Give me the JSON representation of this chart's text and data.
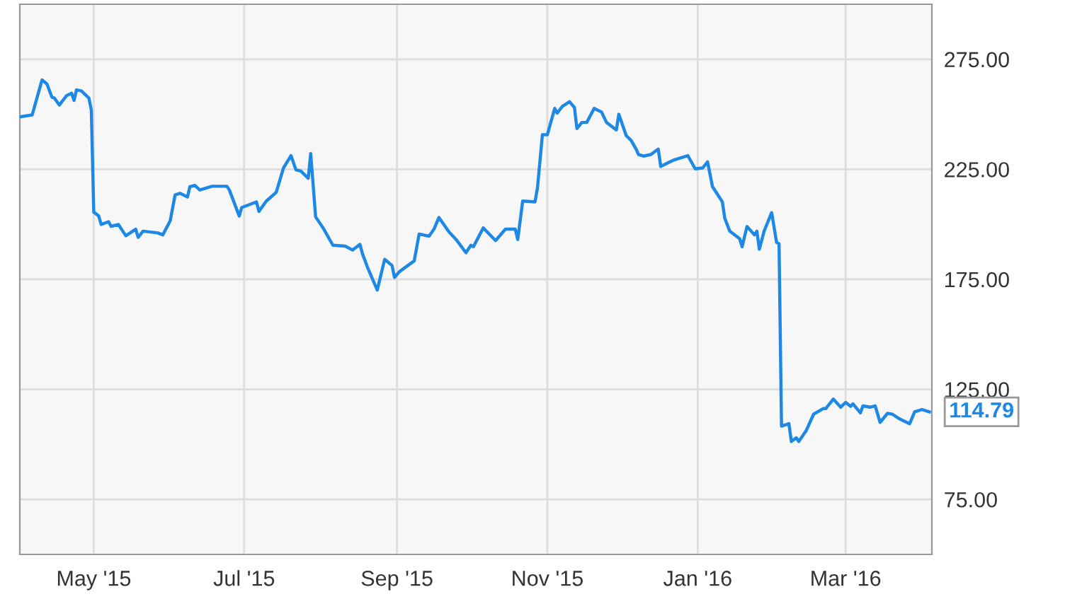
{
  "chart_data": {
    "type": "line",
    "x": [
      "2015-04-01",
      "2015-04-06",
      "2015-04-10",
      "2015-04-12",
      "2015-04-14",
      "2015-04-15",
      "2015-04-17",
      "2015-04-20",
      "2015-04-22",
      "2015-04-23",
      "2015-04-24",
      "2015-04-26",
      "2015-04-29",
      "2015-04-30",
      "2015-05-01",
      "2015-05-03",
      "2015-05-04",
      "2015-05-07",
      "2015-05-08",
      "2015-05-11",
      "2015-05-14",
      "2015-05-18",
      "2015-05-19",
      "2015-05-21",
      "2015-05-27",
      "2015-05-29",
      "2015-06-01",
      "2015-06-03",
      "2015-06-05",
      "2015-06-08",
      "2015-06-09",
      "2015-06-11",
      "2015-06-13",
      "2015-06-18",
      "2015-06-24",
      "2015-06-25",
      "2015-06-29",
      "2015-06-30",
      "2015-07-06",
      "2015-07-07",
      "2015-07-10",
      "2015-07-14",
      "2015-07-17",
      "2015-07-20",
      "2015-07-22",
      "2015-07-24",
      "2015-07-27",
      "2015-07-28",
      "2015-07-30",
      "2015-08-02",
      "2015-08-06",
      "2015-08-11",
      "2015-08-14",
      "2015-08-17",
      "2015-08-18",
      "2015-08-20",
      "2015-08-24",
      "2015-08-27",
      "2015-08-30",
      "2015-08-31",
      "2015-09-02",
      "2015-09-08",
      "2015-09-10",
      "2015-09-14",
      "2015-09-16",
      "2015-09-18",
      "2015-09-22",
      "2015-09-25",
      "2015-09-29",
      "2015-10-01",
      "2015-10-02",
      "2015-10-06",
      "2015-10-11",
      "2015-10-15",
      "2015-10-19",
      "2015-10-20",
      "2015-10-22",
      "2015-10-27",
      "2015-10-28",
      "2015-10-30",
      "2015-11-01",
      "2015-11-04",
      "2015-11-05",
      "2015-11-07",
      "2015-11-10",
      "2015-11-12",
      "2015-11-13",
      "2015-11-15",
      "2015-11-17",
      "2015-11-20",
      "2015-11-23",
      "2015-11-25",
      "2015-11-29",
      "2015-11-30",
      "2015-12-03",
      "2015-12-05",
      "2015-12-07",
      "2015-12-08",
      "2015-12-10",
      "2015-12-13",
      "2015-12-16",
      "2015-12-17",
      "2015-12-22",
      "2015-12-28",
      "2015-12-31",
      "2016-01-03",
      "2016-01-05",
      "2016-01-07",
      "2016-01-11",
      "2016-01-12",
      "2016-01-14",
      "2016-01-18",
      "2016-01-19",
      "2016-01-21",
      "2016-01-24",
      "2016-01-25",
      "2016-01-26",
      "2016-01-28",
      "2016-01-31",
      "2016-02-02",
      "2016-02-03",
      "2016-02-04",
      "2016-02-07",
      "2016-02-08",
      "2016-02-10",
      "2016-02-11",
      "2016-02-14",
      "2016-02-17",
      "2016-02-21",
      "2016-02-22",
      "2016-02-25",
      "2016-02-28",
      "2016-03-01",
      "2016-03-03",
      "2016-03-04",
      "2016-03-07",
      "2016-03-08",
      "2016-03-11",
      "2016-03-13",
      "2016-03-15",
      "2016-03-18",
      "2016-03-20",
      "2016-03-23",
      "2016-03-27",
      "2016-03-29",
      "2016-04-01",
      "2016-04-04"
    ],
    "series": [
      {
        "color": "#1e88e5",
        "values": [
          248.8,
          249.7,
          265.6,
          263.8,
          257.8,
          257.4,
          254.2,
          258.5,
          259.6,
          256.3,
          261.1,
          260.6,
          257.4,
          252.0,
          205.5,
          203.8,
          199.9,
          201.2,
          199.1,
          199.9,
          194.8,
          197.8,
          194.1,
          196.9,
          196.1,
          195.2,
          201.6,
          213.4,
          214.1,
          212.4,
          217.1,
          217.7,
          215.6,
          217.3,
          217.3,
          215.6,
          203.8,
          207.6,
          210.2,
          205.9,
          210.6,
          214.5,
          225.7,
          231.2,
          224.8,
          224.2,
          220.9,
          232.1,
          203.4,
          198.4,
          190.5,
          190.1,
          188.3,
          190.9,
          186.6,
          180.6,
          170.1,
          184.1,
          181.3,
          175.9,
          178.5,
          183.4,
          195.6,
          194.6,
          197.8,
          203.1,
          196.7,
          193.1,
          187.1,
          190.5,
          189.8,
          198.4,
          192.6,
          197.8,
          197.8,
          193.1,
          210.6,
          210.2,
          216.6,
          240.7,
          240.7,
          252.7,
          250.5,
          253.5,
          255.7,
          253.1,
          243.5,
          246.3,
          246.3,
          252.7,
          251.0,
          246.3,
          242.9,
          250.0,
          240.3,
          238.1,
          234.2,
          231.7,
          231.0,
          231.7,
          234.2,
          226.3,
          229.1,
          231.2,
          225.2,
          225.6,
          228.4,
          217.1,
          210.2,
          202.7,
          196.9,
          193.5,
          189.8,
          199.0,
          195.2,
          196.9,
          188.7,
          197.1,
          205.3,
          191.8,
          191.2,
          108.3,
          109.4,
          101.3,
          103.0,
          101.3,
          106.2,
          113.7,
          116.3,
          116.3,
          120.6,
          116.9,
          119.1,
          117.3,
          118.4,
          114.3,
          117.5,
          116.9,
          117.5,
          110.0,
          114.1,
          113.7,
          111.5,
          109.4,
          114.8,
          115.8,
          114.79
        ]
      }
    ],
    "xlim": [
      "2015-04-01",
      "2016-04-05"
    ],
    "xticks": [
      {
        "value": "2015-05-01",
        "label": "May '15"
      },
      {
        "value": "2015-07-01",
        "label": "Jul '15"
      },
      {
        "value": "2015-09-01",
        "label": "Sep '15"
      },
      {
        "value": "2015-11-01",
        "label": "Nov '15"
      },
      {
        "value": "2016-01-01",
        "label": "Jan '16"
      },
      {
        "value": "2016-03-01",
        "label": "Mar '16"
      }
    ],
    "ylim": [
      50,
      300
    ],
    "yticks": [
      {
        "value": 75,
        "label": "75.00"
      },
      {
        "value": 125,
        "label": "125.00"
      },
      {
        "value": 175,
        "label": "175.00"
      },
      {
        "value": 225,
        "label": "225.00"
      },
      {
        "value": 275,
        "label": "275.00"
      }
    ],
    "annotations": [
      {
        "text": "114.79",
        "x": "2016-04-04",
        "y": 114.79
      }
    ],
    "grid": true,
    "marker": "none",
    "line_style": "solid"
  }
}
